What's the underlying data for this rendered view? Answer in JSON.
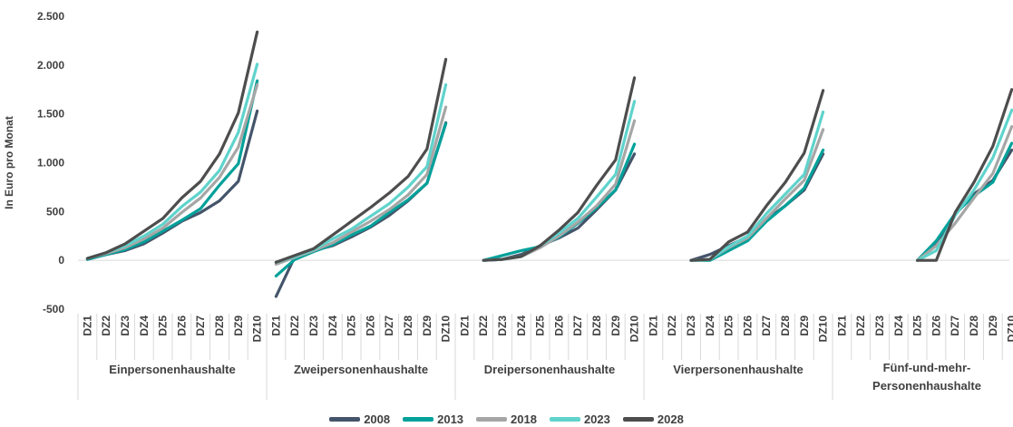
{
  "chart_data": {
    "type": "line",
    "ylabel": "In Euro pro Monat",
    "ylim": [
      -500,
      2500
    ],
    "yticks": [
      -500,
      0,
      500,
      1000,
      1500,
      2000,
      2500
    ],
    "ytick_labels": [
      "-500",
      "0",
      "500",
      "1.000",
      "1.500",
      "2.000",
      "2.500"
    ],
    "grid": false,
    "legend_position": "bottom",
    "categories": [
      "DZ1",
      "DZ2",
      "DZ3",
      "DZ4",
      "DZ5",
      "DZ6",
      "DZ7",
      "DZ8",
      "DZ9",
      "DZ10"
    ],
    "groups": [
      {
        "name": "Einpersonenhaushalte",
        "series": [
          {
            "name": "2008",
            "values": [
              10,
              60,
              100,
              170,
              280,
              400,
              490,
              610,
              810,
              1530
            ]
          },
          {
            "name": "2013",
            "values": [
              10,
              60,
              110,
              190,
              300,
              410,
              530,
              770,
              990,
              1840
            ]
          },
          {
            "name": "2018",
            "values": [
              20,
              70,
              130,
              220,
              330,
              490,
              640,
              850,
              1160,
              1800
            ]
          },
          {
            "name": "2023",
            "values": [
              20,
              80,
              150,
              250,
              370,
              550,
              700,
              920,
              1310,
              2010
            ]
          },
          {
            "name": "2028",
            "values": [
              20,
              80,
              170,
              300,
              430,
              640,
              810,
              1090,
              1510,
              2340
            ]
          }
        ]
      },
      {
        "name": "Zweipersonenhaushalte",
        "series": [
          {
            "name": "2008",
            "values": [
              -370,
              40,
              100,
              150,
              240,
              340,
              460,
              610,
              790,
              1410
            ]
          },
          {
            "name": "2013",
            "values": [
              -160,
              10,
              90,
              160,
              260,
              350,
              490,
              620,
              790,
              1400
            ]
          },
          {
            "name": "2018",
            "values": [
              -40,
              30,
              100,
              180,
              290,
              400,
              520,
              670,
              880,
              1570
            ]
          },
          {
            "name": "2023",
            "values": [
              -20,
              40,
              110,
              220,
              320,
              450,
              580,
              750,
              960,
              1800
            ]
          },
          {
            "name": "2028",
            "values": [
              -20,
              50,
              120,
              260,
              400,
              540,
              690,
              860,
              1140,
              2060
            ]
          }
        ]
      },
      {
        "name": "Dreipersonenhaushalte",
        "series": [
          {
            "name": "2008",
            "values": [
              null,
              0,
              10,
              60,
              150,
              230,
              330,
              520,
              720,
              1090
            ]
          },
          {
            "name": "2013",
            "values": [
              null,
              0,
              50,
              100,
              140,
              240,
              380,
              540,
              720,
              1190
            ]
          },
          {
            "name": "2018",
            "values": [
              null,
              0,
              10,
              40,
              130,
              250,
              390,
              560,
              780,
              1430
            ]
          },
          {
            "name": "2023",
            "values": [
              null,
              0,
              10,
              40,
              150,
              280,
              430,
              650,
              880,
              1630
            ]
          },
          {
            "name": "2028",
            "values": [
              null,
              0,
              10,
              40,
              150,
              310,
              490,
              770,
              1030,
              1870
            ]
          }
        ]
      },
      {
        "name": "Vierpersonenhaushalte",
        "series": [
          {
            "name": "2008",
            "values": [
              null,
              null,
              0,
              60,
              150,
              240,
              420,
              560,
              720,
              1090
            ]
          },
          {
            "name": "2013",
            "values": [
              null,
              null,
              0,
              0,
              100,
              200,
              400,
              560,
              740,
              1130
            ]
          },
          {
            "name": "2018",
            "values": [
              null,
              null,
              0,
              10,
              130,
              230,
              430,
              630,
              820,
              1340
            ]
          },
          {
            "name": "2023",
            "values": [
              null,
              null,
              0,
              10,
              140,
              250,
              480,
              680,
              880,
              1520
            ]
          },
          {
            "name": "2028",
            "values": [
              null,
              null,
              0,
              10,
              190,
              290,
              560,
              800,
              1100,
              1740
            ]
          }
        ]
      },
      {
        "name": "Fünf-und-mehr-Personenhaushalte",
        "series": [
          {
            "name": "2008",
            "values": [
              null,
              null,
              null,
              null,
              0,
              160,
              470,
              680,
              820,
              1130
            ]
          },
          {
            "name": "2013",
            "values": [
              null,
              null,
              null,
              null,
              0,
              200,
              480,
              660,
              800,
              1200
            ]
          },
          {
            "name": "2018",
            "values": [
              null,
              null,
              null,
              null,
              0,
              150,
              380,
              640,
              890,
              1370
            ]
          },
          {
            "name": "2023",
            "values": [
              null,
              null,
              null,
              null,
              0,
              100,
              460,
              720,
              1050,
              1540
            ]
          },
          {
            "name": "2028",
            "values": [
              null,
              null,
              null,
              null,
              0,
              0,
              490,
              800,
              1170,
              1750
            ]
          }
        ]
      }
    ]
  },
  "legend": {
    "items": [
      {
        "label": "2008",
        "color": "#44546a"
      },
      {
        "label": "2013",
        "color": "#00a19a"
      },
      {
        "label": "2018",
        "color": "#a6a6a6"
      },
      {
        "label": "2023",
        "color": "#5fd3cc"
      },
      {
        "label": "2028",
        "color": "#4d4d4d"
      }
    ]
  }
}
